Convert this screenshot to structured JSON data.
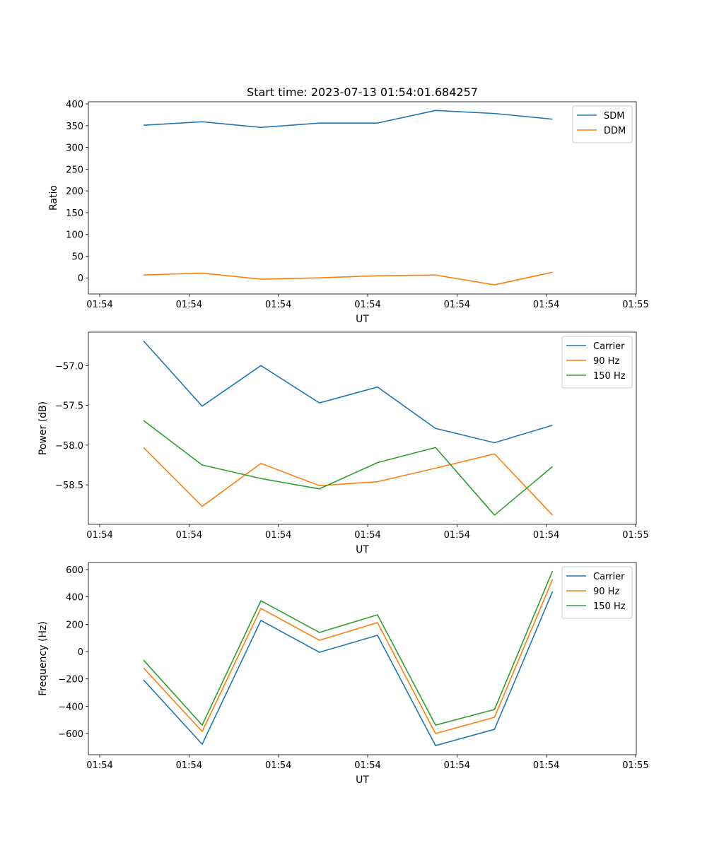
{
  "chart_data": [
    {
      "type": "line",
      "title": "Start time: 2023-07-13 01:54:01.684257",
      "xlabel": "UT",
      "ylabel": "Ratio",
      "x": [
        4.9,
        11.47,
        18.05,
        24.6,
        31.1,
        37.6,
        44.2,
        50.7
      ],
      "xlim": [
        -1.27,
        60.08
      ],
      "xticks": [
        0,
        10,
        20,
        30,
        40,
        50,
        60
      ],
      "xtick_labels": [
        "01:54",
        "01:54",
        "01:54",
        "01:54",
        "01:54",
        "01:54",
        "01:55"
      ],
      "ylim": [
        -37,
        405
      ],
      "yticks": [
        0,
        50,
        100,
        150,
        200,
        250,
        300,
        350,
        400
      ],
      "ytick_labels": [
        "0",
        "50",
        "100",
        "150",
        "200",
        "250",
        "300",
        "350",
        "400"
      ],
      "legend": "top-right",
      "series": [
        {
          "name": "SDM",
          "color": "#1f77b4",
          "values": [
            351,
            359,
            346,
            356,
            356,
            385,
            378,
            365
          ]
        },
        {
          "name": "DDM",
          "color": "#ff7f0e",
          "values": [
            6.5,
            11,
            -3,
            0,
            5,
            6.5,
            -16,
            13
          ]
        }
      ]
    },
    {
      "type": "line",
      "xlabel": "UT",
      "ylabel": "Power (dB)",
      "x": [
        4.9,
        11.47,
        18.05,
        24.6,
        31.1,
        37.6,
        44.2,
        50.7
      ],
      "xlim": [
        -1.27,
        60.08
      ],
      "xticks": [
        0,
        10,
        20,
        30,
        40,
        50,
        60
      ],
      "xtick_labels": [
        "01:54",
        "01:54",
        "01:54",
        "01:54",
        "01:54",
        "01:54",
        "01:55"
      ],
      "ylim": [
        -58.996,
        -56.58
      ],
      "yticks": [
        -57.0,
        -57.5,
        -58.0,
        -58.5
      ],
      "ytick_labels": [
        "−57.0",
        "−57.5",
        "−58.0",
        "−58.5"
      ],
      "legend": "top-right",
      "series": [
        {
          "name": "Carrier",
          "color": "#1f77b4",
          "values": [
            -56.69,
            -57.51,
            -57.0,
            -57.47,
            -57.27,
            -57.79,
            -57.97,
            -57.75
          ]
        },
        {
          "name": "90 Hz",
          "color": "#ff7f0e",
          "values": [
            -58.03,
            -58.77,
            -58.23,
            -58.51,
            -58.46,
            -58.29,
            -58.11,
            -58.88
          ]
        },
        {
          "name": "150 Hz",
          "color": "#2ca02c",
          "values": [
            -57.69,
            -58.25,
            -58.42,
            -58.55,
            -58.22,
            -58.03,
            -58.88,
            -58.27
          ]
        }
      ]
    },
    {
      "type": "line",
      "xlabel": "UT",
      "ylabel": "Frequency (Hz)",
      "x": [
        4.9,
        11.47,
        18.05,
        24.6,
        31.1,
        37.6,
        44.2,
        50.7
      ],
      "xlim": [
        -1.27,
        60.08
      ],
      "xticks": [
        0,
        10,
        20,
        30,
        40,
        50,
        60
      ],
      "xtick_labels": [
        "01:54",
        "01:54",
        "01:54",
        "01:54",
        "01:54",
        "01:54",
        "01:55"
      ],
      "ylim": [
        -755,
        652
      ],
      "yticks": [
        -600,
        -400,
        -200,
        0,
        200,
        400,
        600
      ],
      "ytick_labels": [
        "−600",
        "−400",
        "−200",
        "0",
        "200",
        "400",
        "600"
      ],
      "legend": "top-right",
      "series": [
        {
          "name": "Carrier",
          "color": "#1f77b4",
          "values": [
            -207,
            -678,
            228,
            -5,
            119,
            -688,
            -569,
            440
          ]
        },
        {
          "name": "90 Hz",
          "color": "#ff7f0e",
          "values": [
            -119,
            -585,
            316,
            83,
            212,
            -600,
            -481,
            528
          ]
        },
        {
          "name": "150 Hz",
          "color": "#2ca02c",
          "values": [
            -62,
            -538,
            372,
            140,
            269,
            -538,
            -424,
            590
          ]
        }
      ]
    }
  ]
}
